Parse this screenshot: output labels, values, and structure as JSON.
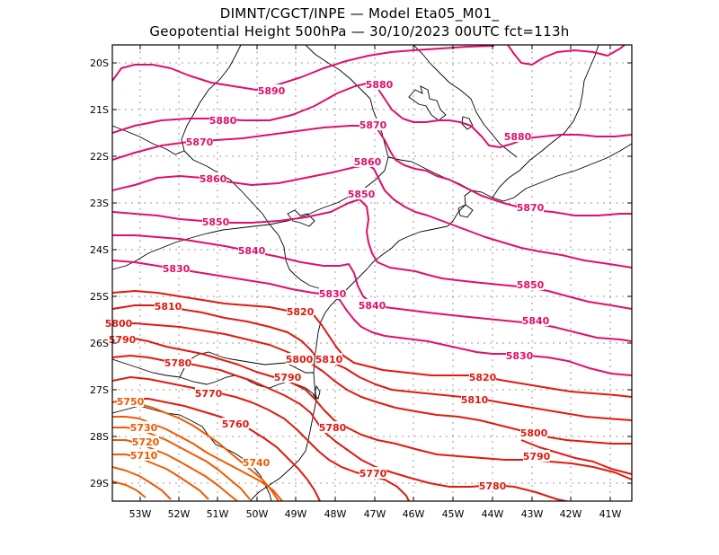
{
  "header": {
    "line1": "DIMNT/CGCT/INPE —  Model Eta05_M01_",
    "line2": "Geopotential Height 500hPa —  30/10/2023 00UTC fct=113h"
  },
  "map": {
    "lat_ticks": [
      "20S",
      "21S",
      "22S",
      "23S",
      "24S",
      "25S",
      "26S",
      "27S",
      "28S",
      "29S"
    ],
    "lon_ticks": [
      "53W",
      "52W",
      "51W",
      "50W",
      "49W",
      "48W",
      "47W",
      "46W",
      "45W",
      "44W",
      "43W",
      "42W",
      "41W"
    ],
    "colors": {
      "frame": "#000000",
      "grid": "#9a9a9a",
      "coast": "#000000",
      "high": "#e0106a",
      "mid": "#e01a10",
      "low": "#f05a00"
    },
    "contours": [
      {
        "level": 5890,
        "color": "high",
        "labels": [
          "5890"
        ]
      },
      {
        "level": 5880,
        "color": "high",
        "labels": [
          "5880",
          "5880",
          "5880"
        ]
      },
      {
        "level": 5870,
        "color": "high",
        "labels": [
          "5870",
          "5870",
          "5870"
        ]
      },
      {
        "level": 5860,
        "color": "high",
        "labels": [
          "5860",
          "5860"
        ]
      },
      {
        "level": 5850,
        "color": "high",
        "labels": [
          "5850",
          "5850",
          "5850"
        ]
      },
      {
        "level": 5840,
        "color": "high",
        "labels": [
          "5840",
          "5840",
          "5840"
        ]
      },
      {
        "level": 5830,
        "color": "high",
        "labels": [
          "5830",
          "5830",
          "5830"
        ]
      },
      {
        "level": 5820,
        "color": "mid",
        "labels": [
          "5820",
          "5820"
        ]
      },
      {
        "level": 5810,
        "color": "mid",
        "labels": [
          "5810",
          "5810",
          "5810"
        ]
      },
      {
        "level": 5800,
        "color": "mid",
        "labels": [
          "5800",
          "5800",
          "5800"
        ]
      },
      {
        "level": 5790,
        "color": "mid",
        "labels": [
          "5790",
          "5790",
          "5790"
        ]
      },
      {
        "level": 5780,
        "color": "mid",
        "labels": [
          "5780",
          "5780",
          "5780"
        ]
      },
      {
        "level": 5770,
        "color": "mid",
        "labels": [
          "5770",
          "5770"
        ]
      },
      {
        "level": 5760,
        "color": "mid",
        "labels": [
          "5760"
        ]
      },
      {
        "level": 5750,
        "color": "low",
        "labels": [
          "5750"
        ]
      },
      {
        "level": 5740,
        "color": "low",
        "labels": [
          "5740"
        ]
      },
      {
        "level": 5730,
        "color": "low",
        "labels": [
          "5730"
        ]
      },
      {
        "level": 5720,
        "color": "low",
        "labels": [
          "5720"
        ]
      },
      {
        "level": 5710,
        "color": "low",
        "labels": [
          "5710"
        ]
      }
    ]
  }
}
